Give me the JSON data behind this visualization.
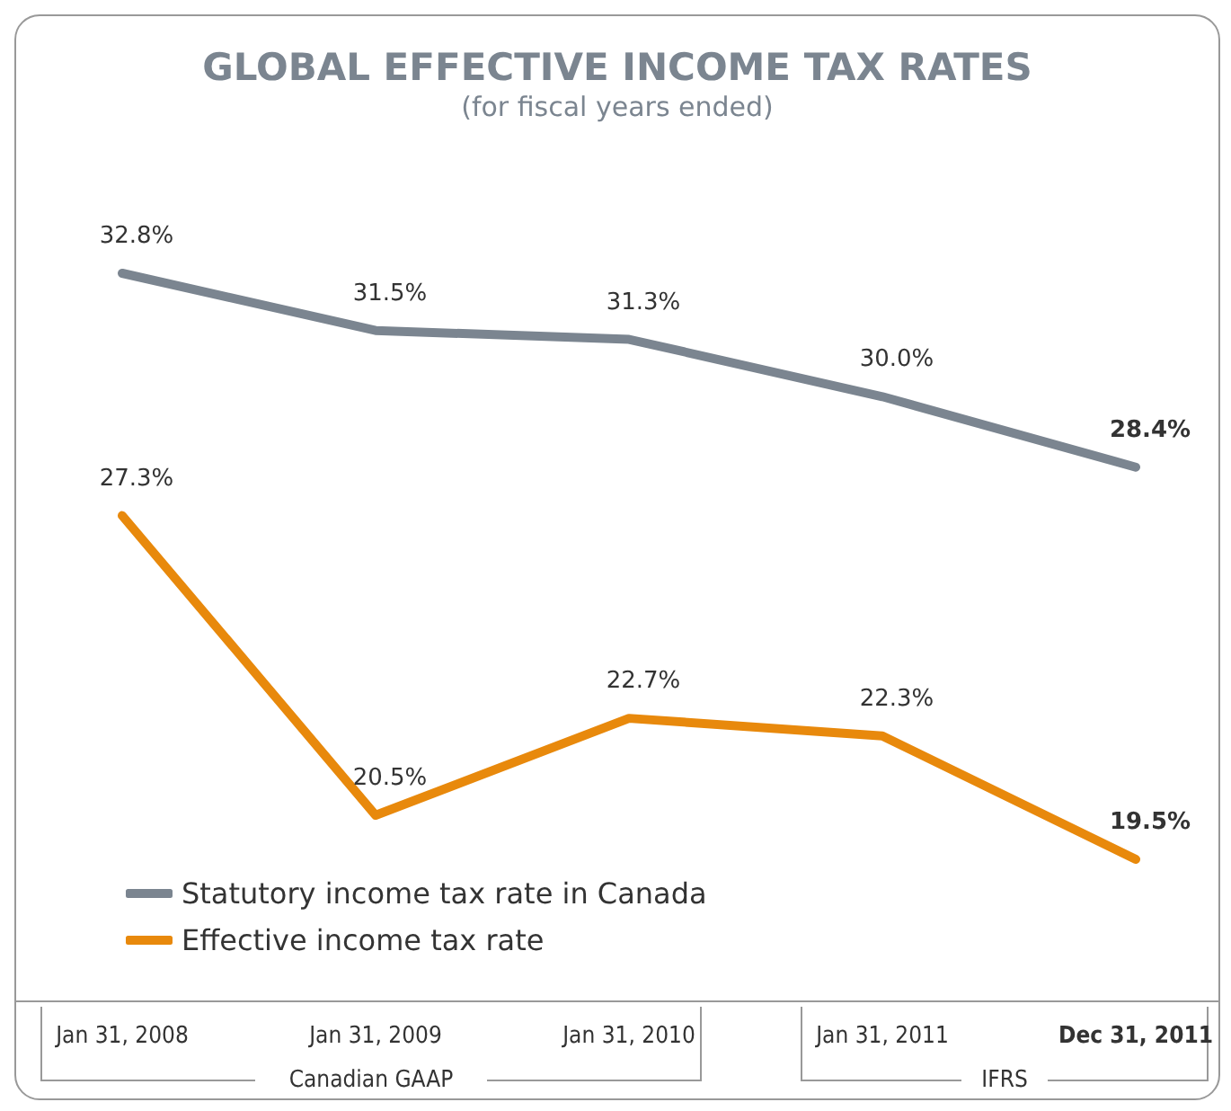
{
  "chart_data": {
    "type": "line",
    "title": "GLOBAL EFFECTIVE INCOME TAX RATES",
    "subtitle": "(for fiscal years ended)",
    "categories": [
      "Jan 31, 2008",
      "Jan 31, 2009",
      "Jan 31, 2010",
      "Jan 31, 2011",
      "Dec 31, 2011"
    ],
    "series": [
      {
        "name": "Statutory income tax rate in Canada",
        "color": "#7b8590",
        "values": [
          32.8,
          31.5,
          31.3,
          30.0,
          28.4
        ],
        "value_labels": [
          "32.8%",
          "31.5%",
          "31.3%",
          "30.0%",
          "28.4%"
        ]
      },
      {
        "name": "Effective income tax rate",
        "color": "#e8890c",
        "values": [
          27.3,
          20.5,
          22.7,
          22.3,
          19.5
        ],
        "value_labels": [
          "27.3%",
          "20.5%",
          "22.7%",
          "22.3%",
          "19.5%"
        ]
      }
    ],
    "annotations": [
      "Canadian GAAP",
      "IFRS"
    ],
    "legend": "bottom left",
    "grid": false,
    "marker": "none",
    "line_style": "solid"
  }
}
